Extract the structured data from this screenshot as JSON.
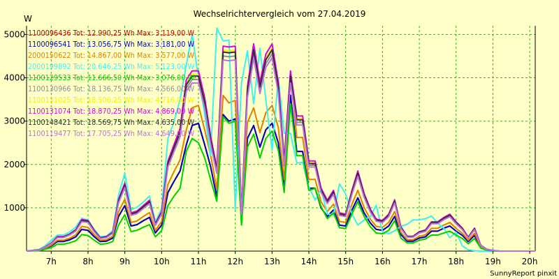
{
  "chart_data": {
    "type": "line",
    "title": "Wechselrichtervergleich vom 27.04.2019",
    "ylabel": "W",
    "footer": "SunnyReport pinxit",
    "grid": true,
    "ylim": [
      0,
      5200
    ],
    "xlim": [
      6.33,
      20.15
    ],
    "x_ticks": [
      7,
      8,
      9,
      10,
      11,
      12,
      13,
      14,
      15,
      16,
      17,
      18,
      19,
      20
    ],
    "x_tick_labels": [
      "7h",
      "8h",
      "9h",
      "10h",
      "11h",
      "12h",
      "13h",
      "14h",
      "15h",
      "16h",
      "17h",
      "18h",
      "19h",
      "20h"
    ],
    "y_ticks": [
      1000,
      2000,
      3000,
      4000,
      5000
    ],
    "y_tick_labels": [
      "1000",
      "2000",
      "3000",
      "4000",
      "5000"
    ],
    "x": [
      6.33,
      6.67,
      6.83,
      7.0,
      7.17,
      7.33,
      7.5,
      7.67,
      7.83,
      8.0,
      8.17,
      8.33,
      8.5,
      8.67,
      8.83,
      9.0,
      9.17,
      9.33,
      9.5,
      9.67,
      9.83,
      10.0,
      10.17,
      10.33,
      10.5,
      10.67,
      10.83,
      11.0,
      11.17,
      11.33,
      11.5,
      11.67,
      11.83,
      12.0,
      12.17,
      12.33,
      12.5,
      12.67,
      12.83,
      13.0,
      13.17,
      13.33,
      13.5,
      13.67,
      13.83,
      14.0,
      14.17,
      14.33,
      14.5,
      14.67,
      14.83,
      15.0,
      15.17,
      15.33,
      15.5,
      15.67,
      15.83,
      16.0,
      16.17,
      16.33,
      16.5,
      16.67,
      16.83,
      17.0,
      17.17,
      17.33,
      17.5,
      17.67,
      17.83,
      18.0,
      18.17,
      18.33,
      18.5,
      18.67,
      18.83,
      19.0,
      19.17,
      19.33,
      19.5,
      19.67,
      19.83,
      20.0,
      20.15
    ],
    "profiles": {
      "A": [
        0,
        20,
        60,
        120,
        220,
        220,
        260,
        330,
        500,
        480,
        330,
        220,
        230,
        300,
        800,
        1050,
        580,
        610,
        700,
        780,
        420,
        600,
        1350,
        1600,
        1850,
        2450,
        2900,
        2950,
        2450,
        1950,
        1250,
        3150,
        3000,
        3050,
        750,
        2600,
        2900,
        2400,
        2800,
        2950,
        2500,
        1450,
        3600,
        2300,
        2300,
        1450,
        1450,
        1000,
        800,
        950,
        600,
        580,
        950,
        1230,
        880,
        650,
        500,
        480,
        580,
        800,
        380,
        230,
        230,
        300,
        330,
        460,
        460,
        530,
        580,
        460,
        360,
        220,
        360,
        90,
        30,
        10,
        0,
        0,
        0,
        0,
        0,
        0,
        0
      ],
      "B": [
        0,
        20,
        60,
        120,
        220,
        220,
        260,
        330,
        500,
        480,
        330,
        220,
        230,
        300,
        800,
        1050,
        580,
        610,
        700,
        780,
        420,
        600,
        1350,
        1600,
        1850,
        2450,
        2900,
        2950,
        2450,
        1950,
        1250,
        3150,
        3000,
        3050,
        750,
        2600,
        2900,
        2400,
        2800,
        2950,
        2500,
        1450,
        3600,
        2300,
        2300,
        1450,
        1450,
        1000,
        800,
        950,
        600,
        580,
        950,
        1230,
        880,
        650,
        500,
        480,
        580,
        800,
        380,
        230,
        230,
        300,
        330,
        460,
        460,
        530,
        580,
        460,
        360,
        220,
        360,
        90,
        30,
        10,
        0,
        0,
        0,
        0,
        0,
        0,
        0
      ],
      "C": [
        0,
        30,
        90,
        180,
        320,
        320,
        380,
        480,
        700,
        680,
        460,
        300,
        320,
        420,
        1150,
        1510,
        850,
        890,
        1010,
        1130,
        610,
        880,
        2000,
        2350,
        2720,
        3800,
        4000,
        4000,
        3400,
        2550,
        1850,
        4550,
        4530,
        4550,
        880,
        3650,
        4600,
        3750,
        4370,
        4600,
        3750,
        2020,
        4000,
        3000,
        3000,
        2000,
        2000,
        1400,
        1130,
        1350,
        850,
        820,
        1350,
        1780,
        1280,
        930,
        710,
        680,
        820,
        1140,
        540,
        330,
        330,
        430,
        470,
        650,
        650,
        750,
        820,
        650,
        510,
        310,
        510,
        130,
        40,
        15,
        0,
        0,
        0,
        0,
        0,
        0,
        0
      ],
      "D": [
        0,
        40,
        120,
        250,
        370,
        370,
        440,
        560,
        760,
        720,
        500,
        330,
        350,
        470,
        1300,
        1800,
        960,
        1010,
        1130,
        1270,
        680,
        980,
        2600,
        2970,
        3500,
        4300,
        5000,
        4000,
        3150,
        2200,
        5150,
        4850,
        4870,
        960,
        3890,
        4620,
        3400,
        4680,
        3500,
        2330,
        4000,
        2720,
        2720,
        2030,
        2050,
        1480,
        1180,
        1430,
        860,
        830,
        1550,
        1320,
        850,
        600,
        720,
        800,
        1060,
        440,
        400,
        470,
        570,
        620,
        720,
        720,
        750,
        810,
        650,
        520,
        310,
        440,
        120,
        30,
        10,
        0,
        0,
        0,
        0,
        0,
        0,
        0,
        0,
        0,
        0
      ],
      "E": [
        0,
        10,
        40,
        80,
        160,
        160,
        190,
        240,
        380,
        360,
        250,
        160,
        170,
        220,
        600,
        840,
        450,
        480,
        550,
        610,
        330,
        470,
        1050,
        1260,
        1450,
        2300,
        2600,
        2500,
        2150,
        1650,
        1150,
        3100,
        2950,
        3000,
        600,
        2400,
        2700,
        2150,
        2600,
        2770,
        2330,
        1350,
        3400,
        2200,
        2200,
        1400,
        1450,
        1030,
        750,
        880,
        540,
        520,
        860,
        1140,
        800,
        560,
        420,
        400,
        480,
        700,
        300,
        190,
        190,
        250,
        280,
        370,
        370,
        420,
        460,
        370,
        290,
        170,
        290,
        70,
        20,
        5,
        0,
        0,
        0,
        0,
        0,
        0,
        0
      ]
    },
    "series": [
      {
        "name": "1100096436",
        "label": "1100096436 Tot: 12.990,25 Wh Max: 3.119,00 W",
        "color": "#C00000",
        "profile": "A",
        "scale": 1.0
      },
      {
        "name": "1100096541",
        "label": "1100096541 Tot: 13.056,75 Wh Max: 3.181,00 W",
        "color": "#0000C8",
        "profile": "B",
        "scale": 1.0
      },
      {
        "name": "2000150622",
        "label": "2000150622 Tot: 14.867,00 Wh Max: 3.577,00 W",
        "color": "#E08000",
        "profile": "A",
        "scale": 1.14
      },
      {
        "name": "2000199892",
        "label": "2000199892 Tot: 20.646,25 Wh Max: 5.123,00 W",
        "color": "#40F0F0",
        "profile": "D",
        "scale": 1.0
      },
      {
        "name": "1100129533",
        "label": "1100129533 Tot: 11.666,50 Wh Max: 3.076,00 W",
        "color": "#00D000",
        "profile": "E",
        "scale": 1.0
      },
      {
        "name": "1100130966",
        "label": "1100130966 Tot: 18.136,75 Wh Max: 4.566,00 W",
        "color": "#909090",
        "profile": "C",
        "scale": 0.99
      },
      {
        "name": "1100131025",
        "label": "1100131025 Tot: 18.506,25 Wh Max: 4.716,00 W",
        "color": "#F0F000",
        "profile": "C",
        "scale": 1.02
      },
      {
        "name": "1100131074",
        "label": "1100131074 Tot: 18.870,25 Wh Max: 4.869,00 W",
        "color": "#E000E0",
        "profile": "C",
        "scale": 1.04
      },
      {
        "name": "1100148421",
        "label": "1100148421 Tot: 18.569,75 Wh Max: 4.635,00 W",
        "color": "#303030",
        "profile": "C",
        "scale": 1.01
      },
      {
        "name": "1100119477",
        "label": "1100119477 Tot: 17.705,25 Wh Max: 4.649,00 W",
        "color": "#C070E0",
        "profile": "C",
        "scale": 0.97
      }
    ]
  }
}
